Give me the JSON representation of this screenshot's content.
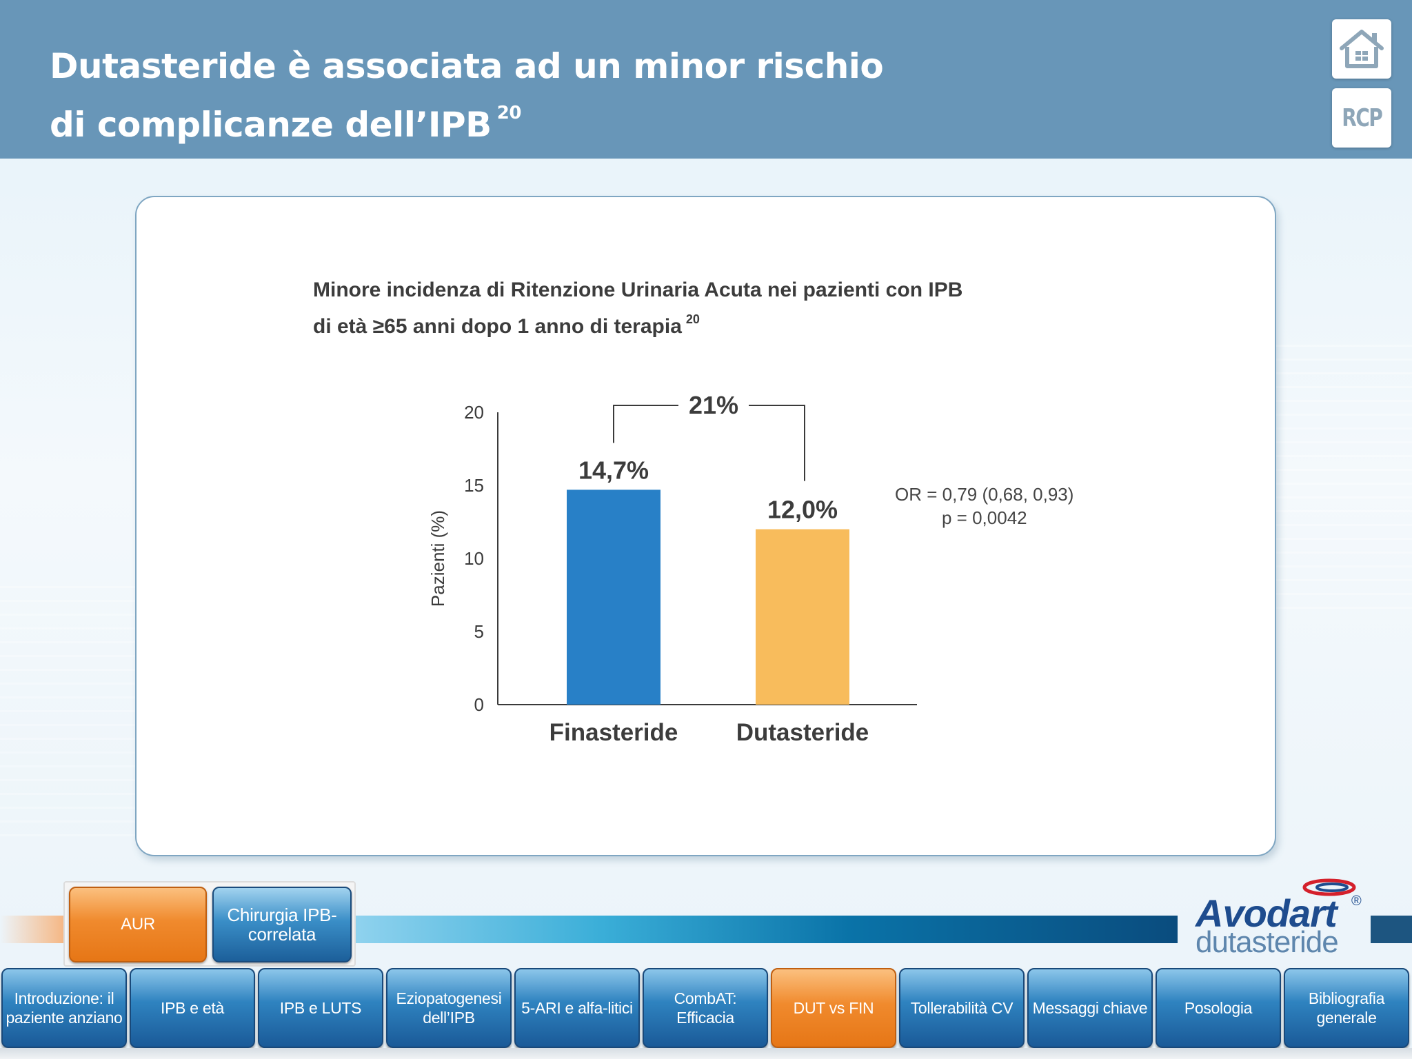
{
  "header": {
    "title_line1": "Dutasteride è associata ad un minor rischio",
    "title_line2": "di complicanze dell’IPB",
    "title_ref": "20",
    "rcp_label": "RCP"
  },
  "chart_title": {
    "line1": "Minore incidenza di Ritenzione Urinaria Acuta nei pazienti con IPB",
    "line2": "di età ≥65 anni dopo 1 anno di terapia",
    "ref": "20"
  },
  "chart_data": {
    "type": "bar",
    "categories": [
      "Finasteride",
      "Dutasteride"
    ],
    "values": [
      14.7,
      12.0
    ],
    "value_labels": [
      "14,7%",
      "12,0%"
    ],
    "colors": [
      "#2880c7",
      "#f8bc5c"
    ],
    "ylabel": "Pazienti (%)",
    "ylim": [
      0,
      20
    ],
    "yticks": [
      0,
      5,
      10,
      15,
      20
    ],
    "annotation": "21%",
    "grid": false
  },
  "stats": {
    "line1": "OR = 0,79 (0,68, 0,93)",
    "line2": "p = 0,0042"
  },
  "sub_tabs": [
    {
      "label": "AUR",
      "active": true
    },
    {
      "label": "Chirurgia IPB-correlata",
      "active": false
    }
  ],
  "logo": {
    "brand": "Avodart",
    "registered": "®",
    "generic": "dutasteride"
  },
  "nav": [
    {
      "label": "Introduzione: il paziente anziano",
      "active": false
    },
    {
      "label": "IPB e età",
      "active": false
    },
    {
      "label": "IPB e LUTS",
      "active": false
    },
    {
      "label": "Eziopatogenesi dell’IPB",
      "active": false
    },
    {
      "label": "5-ARI e alfa-litici",
      "active": false
    },
    {
      "label": "CombAT: Efficacia",
      "active": false
    },
    {
      "label": "DUT vs FIN",
      "active": true
    },
    {
      "label": "Tollerabilità CV",
      "active": false
    },
    {
      "label": "Messaggi chiave",
      "active": false
    },
    {
      "label": "Posologia",
      "active": false
    },
    {
      "label": "Bibliografia generale",
      "active": false
    }
  ]
}
